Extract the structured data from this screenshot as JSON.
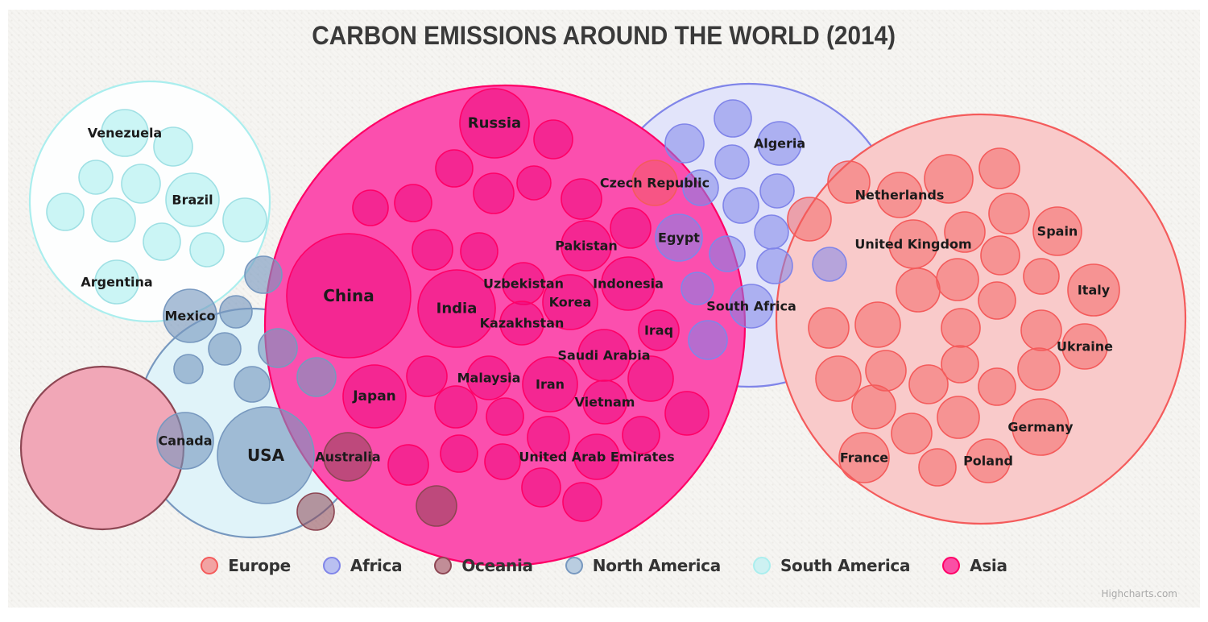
{
  "title": "CARBON EMISSIONS AROUND THE WORLD (2014)",
  "credit": "Highcharts.com",
  "legend": [
    {
      "label": "Europe",
      "marker_fill": "#f2a3a3",
      "marker_border": "#f45b5b"
    },
    {
      "label": "Africa",
      "marker_fill": "#b9c0f1",
      "marker_border": "#8085e9"
    },
    {
      "label": "Oceania",
      "marker_fill": "#c18d97",
      "marker_border": "#8d4653"
    },
    {
      "label": "North America",
      "marker_fill": "#b9cde0",
      "marker_border": "#7798bf"
    },
    {
      "label": "South America",
      "marker_fill": "#cdf1f2",
      "marker_border": "#aaeeee"
    },
    {
      "label": "Asia",
      "marker_fill": "#fa4fa5",
      "marker_border": "#ff0066"
    }
  ],
  "chart_data": {
    "type": "packed_bubble",
    "legend_position": "bottom",
    "bubble_format": [
      "cx",
      "cy",
      "r",
      "label",
      "label_font_px"
    ],
    "series": [
      {
        "name": "North America",
        "color": "#7798BF",
        "parent_fill": "#e0f3f9",
        "bubble_fill": "rgba(119,152,191,0.62)",
        "bubble_stroke": "#7798bf",
        "parent": {
          "cx": 312,
          "cy": 525,
          "r": 142
        },
        "bubbles": [
          [
            236,
            392,
            33,
            "Mexico"
          ],
          [
            293,
            387,
            20
          ],
          [
            327,
            341,
            23
          ],
          [
            279,
            433,
            20
          ],
          [
            234,
            458,
            18
          ],
          [
            313,
            477,
            22
          ],
          [
            345,
            432,
            24
          ],
          [
            393,
            468,
            24
          ],
          [
            230,
            547,
            35,
            "Canada"
          ],
          [
            330,
            565,
            60,
            "USA",
            20
          ]
        ]
      },
      {
        "name": "South America",
        "color": "#aaeeee",
        "parent_fill": "#fdfefe",
        "bubble_fill": "rgba(170,238,238,0.6)",
        "bubble_stroke": "#9fe0e4",
        "parent": {
          "cx": 186,
          "cy": 250,
          "r": 149
        },
        "bubbles": [
          [
            155,
            165,
            29,
            "Venezuela"
          ],
          [
            215,
            182,
            24
          ],
          [
            119,
            220,
            21
          ],
          [
            175,
            228,
            24
          ],
          [
            239,
            248,
            33,
            "Brazil"
          ],
          [
            81,
            263,
            23
          ],
          [
            141,
            273,
            27
          ],
          [
            304,
            273,
            27
          ],
          [
            201,
            300,
            23
          ],
          [
            257,
            310,
            21
          ],
          [
            145,
            350,
            27,
            "Argentina"
          ]
        ]
      },
      {
        "name": "Oceania",
        "color": "#8d4653",
        "parent_fill": "#f1a7b7",
        "bubble_fill": "rgba(141,70,83,0.55)",
        "bubble_stroke": "#8d4653",
        "parent": {
          "cx": 127,
          "cy": 556,
          "r": 101
        },
        "bubbles": [
          [
            432,
            567,
            30,
            "Australia"
          ],
          [
            392,
            635,
            23
          ],
          [
            542,
            628,
            25
          ]
        ]
      },
      {
        "name": "Africa",
        "color": "#8085e9",
        "parent_fill": "#e2e4fa",
        "bubble_fill": "rgba(128,133,233,0.55)",
        "bubble_stroke": "#8085e9",
        "parent": {
          "cx": 930,
          "cy": 292,
          "r": 188
        },
        "bubbles": [
          [
            910,
            147,
            23
          ],
          [
            850,
            178,
            24
          ],
          [
            968,
            178,
            27,
            "Algeria"
          ],
          [
            909,
            201,
            21
          ],
          [
            870,
            233,
            22
          ],
          [
            965,
            237,
            21
          ],
          [
            920,
            255,
            22
          ],
          [
            958,
            288,
            21
          ],
          [
            843,
            295,
            29,
            "Egypt"
          ],
          [
            903,
            315,
            22
          ],
          [
            962,
            330,
            22
          ],
          [
            1030,
            328,
            21
          ],
          [
            866,
            358,
            20
          ],
          [
            933,
            380,
            27,
            "South Africa"
          ],
          [
            879,
            422,
            24
          ]
        ]
      },
      {
        "name": "Europe",
        "color": "#f45b5b",
        "parent_fill": "#f9caca",
        "bubble_fill": "rgba(244,91,91,0.5)",
        "bubble_stroke": "#f45b5b",
        "parent": {
          "cx": 1218,
          "cy": 396,
          "r": 254
        },
        "bubbles": [
          [
            813,
            227,
            28,
            "Czech Republic"
          ],
          [
            1054,
            226,
            26
          ],
          [
            1117,
            242,
            28,
            "Netherlands"
          ],
          [
            1178,
            222,
            30
          ],
          [
            1241,
            209,
            25
          ],
          [
            1005,
            272,
            27
          ],
          [
            1134,
            303,
            30,
            "United Kingdom"
          ],
          [
            1198,
            288,
            25
          ],
          [
            1253,
            265,
            25
          ],
          [
            1313,
            287,
            30,
            "Spain"
          ],
          [
            1242,
            317,
            24
          ],
          [
            1189,
            347,
            26
          ],
          [
            1293,
            343,
            22
          ],
          [
            1358,
            360,
            32,
            "Italy"
          ],
          [
            1140,
            360,
            27
          ],
          [
            1238,
            373,
            23
          ],
          [
            1090,
            403,
            28
          ],
          [
            1029,
            407,
            25
          ],
          [
            1193,
            407,
            24
          ],
          [
            1293,
            410,
            25
          ],
          [
            1347,
            430,
            28,
            "Ukraine"
          ],
          [
            1041,
            470,
            28
          ],
          [
            1100,
            460,
            25
          ],
          [
            1153,
            477,
            24
          ],
          [
            1192,
            452,
            23
          ],
          [
            1238,
            480,
            23
          ],
          [
            1290,
            458,
            26
          ],
          [
            1085,
            505,
            27
          ],
          [
            1132,
            538,
            25
          ],
          [
            1190,
            518,
            26
          ],
          [
            1292,
            530,
            35,
            "Germany"
          ],
          [
            1073,
            568,
            31,
            "France"
          ],
          [
            1164,
            580,
            23
          ],
          [
            1227,
            572,
            27,
            "Poland"
          ]
        ]
      },
      {
        "name": "Asia",
        "color": "#ff0066",
        "parent_fill": "#fb4fae",
        "bubble_fill": "rgba(238,0,118,0.5)",
        "bubble_stroke": "#ff0066",
        "parent": {
          "cx": 627,
          "cy": 404,
          "r": 298
        },
        "bubbles": [
          [
            614,
            153,
            43,
            "Russia",
            18
          ],
          [
            687,
            173,
            24
          ],
          [
            564,
            209,
            23
          ],
          [
            460,
            258,
            22
          ],
          [
            513,
            252,
            23
          ],
          [
            613,
            240,
            25
          ],
          [
            663,
            227,
            21
          ],
          [
            722,
            247,
            25
          ],
          [
            783,
            283,
            25
          ],
          [
            537,
            310,
            25
          ],
          [
            595,
            312,
            23
          ],
          [
            433,
            367,
            77,
            "China",
            20
          ],
          [
            567,
            383,
            48,
            "India",
            18
          ],
          [
            650,
            352,
            26,
            "Uzbekistan"
          ],
          [
            648,
            401,
            27,
            "Kazakhstan"
          ],
          [
            728,
            305,
            31,
            "Pakistan"
          ],
          [
            708,
            375,
            34,
            "Korea"
          ],
          [
            780,
            352,
            33,
            "Indonesia"
          ],
          [
            818,
            410,
            25,
            "Iraq"
          ],
          [
            750,
            441,
            32,
            "Saudi Arabia"
          ],
          [
            607,
            469,
            27,
            "Malaysia"
          ],
          [
            683,
            477,
            34,
            "Iran"
          ],
          [
            465,
            492,
            39,
            "Japan",
            17
          ],
          [
            751,
            499,
            27,
            "Vietnam"
          ],
          [
            808,
            470,
            28
          ],
          [
            853,
            513,
            27
          ],
          [
            530,
            467,
            25
          ],
          [
            566,
            505,
            26
          ],
          [
            627,
            517,
            23
          ],
          [
            570,
            563,
            23
          ],
          [
            624,
            573,
            22
          ],
          [
            507,
            577,
            25
          ],
          [
            681,
            543,
            26
          ],
          [
            741,
            567,
            28,
            "United Arab Emirates"
          ],
          [
            796,
            540,
            23
          ],
          [
            672,
            605,
            24
          ],
          [
            723,
            623,
            24
          ]
        ]
      }
    ]
  }
}
